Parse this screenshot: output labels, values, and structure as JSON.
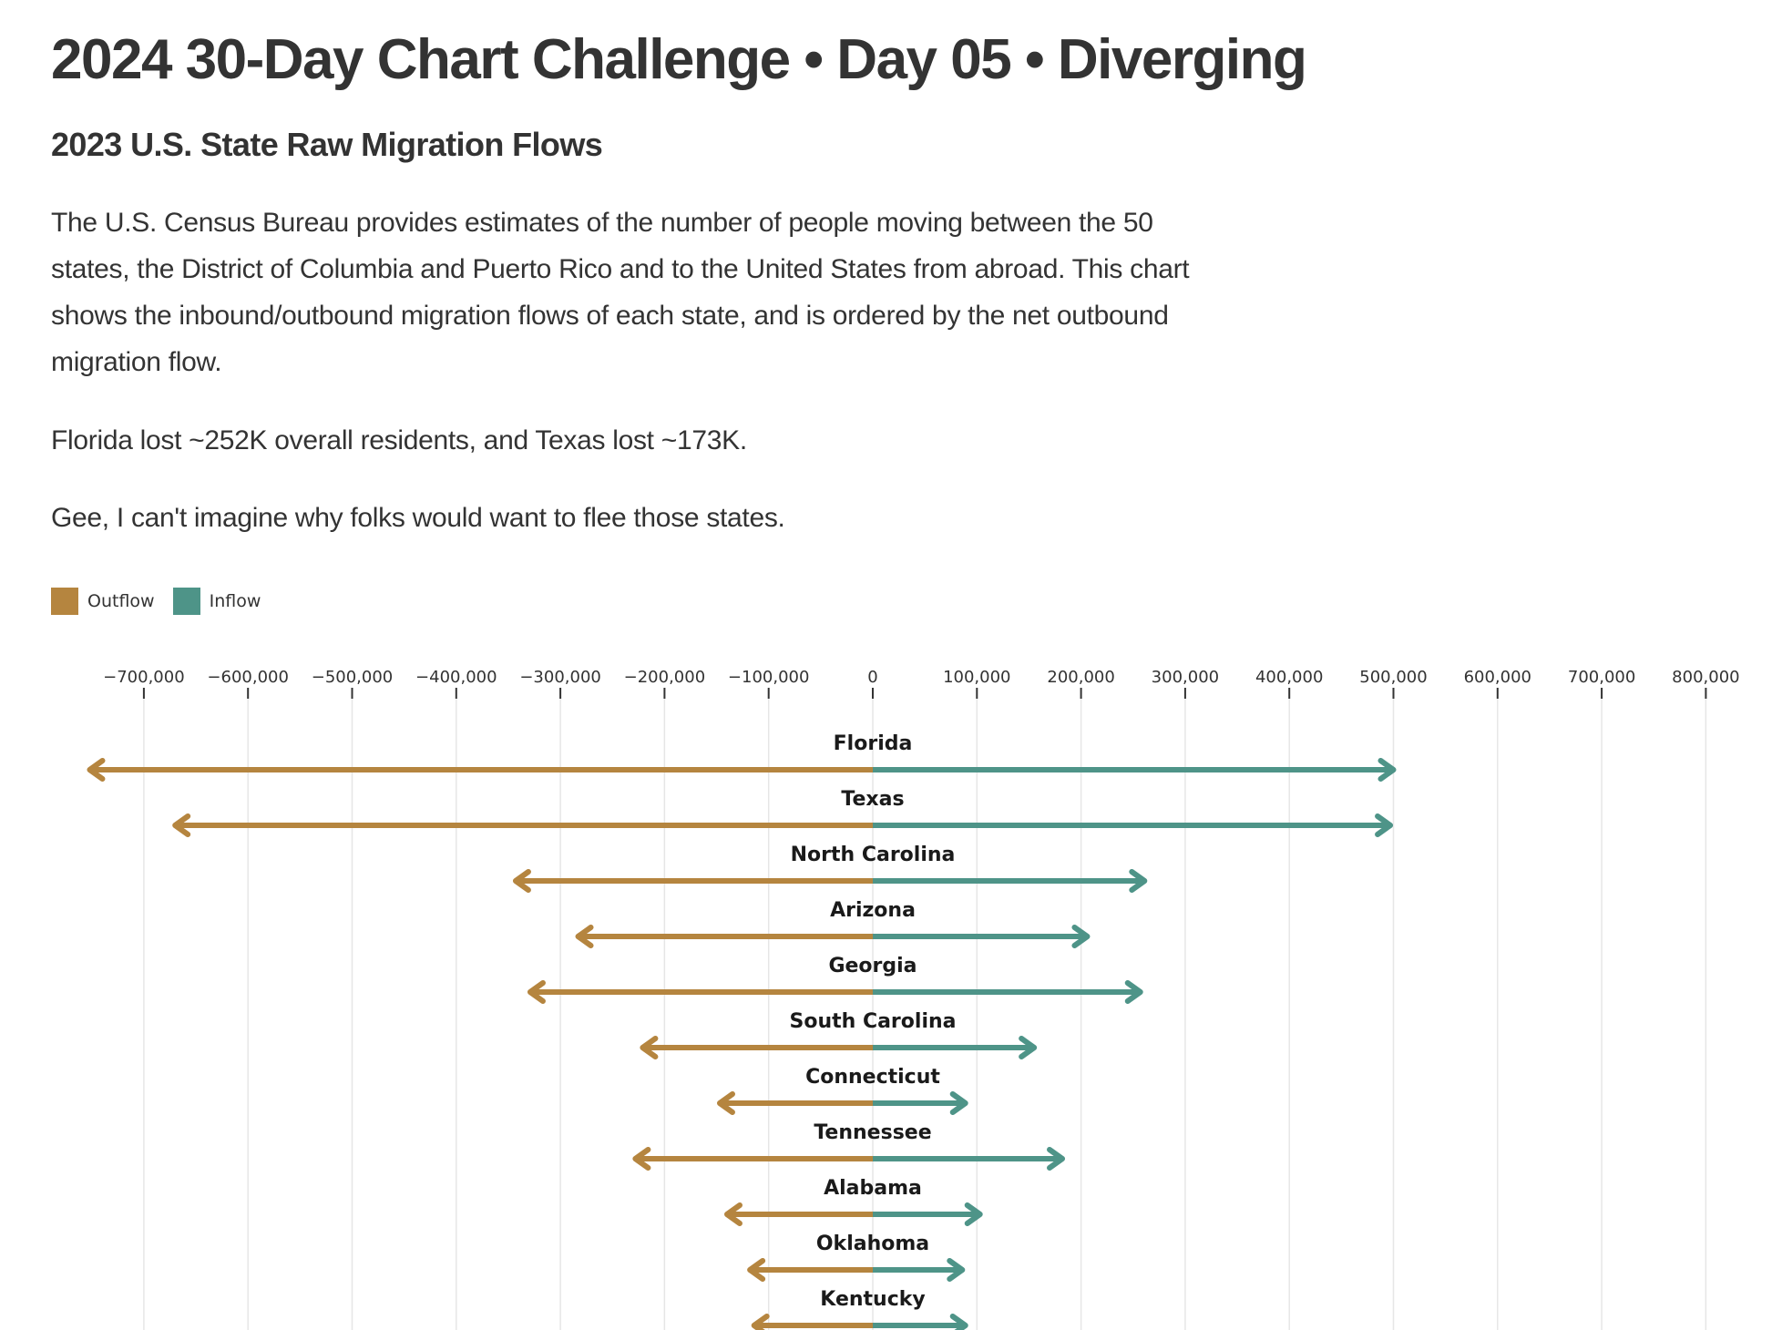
{
  "header": {
    "title": "2024 30-Day Chart Challenge • Day 05 • Diverging",
    "subtitle": "2023 U.S. State Raw Migration Flows"
  },
  "body": {
    "paragraph_1": "The U.S. Census Bureau provides estimates of the number of people moving between the 50 states, the District of Columbia and Puerto Rico and to the United States from abroad. This chart shows the inbound/outbound migration flows of each state, and is ordered by the net outbound migration flow.",
    "paragraph_2": "Florida lost ~252K overall residents, and Texas lost ~173K.",
    "paragraph_3": "Gee, I can't imagine why folks would want to flee those states."
  },
  "legend": {
    "outflow_label": "Outflow",
    "inflow_label": "Inflow"
  },
  "colors": {
    "outflow": "#b5853f",
    "inflow": "#4e9488",
    "gridline": "#e6e6e6",
    "text": "#333333"
  },
  "chart_data": {
    "type": "diverging arrow",
    "title": "2023 U.S. State Raw Migration Flows",
    "xlabel": "",
    "ylabel": "",
    "xlim": [
      -700000,
      800000
    ],
    "x_ticks": [
      -700000,
      -600000,
      -500000,
      -400000,
      -300000,
      -200000,
      -100000,
      0,
      100000,
      200000,
      300000,
      400000,
      500000,
      600000,
      700000,
      800000
    ],
    "x_tick_labels": [
      "−700,000",
      "−600,000",
      "−500,000",
      "−400,000",
      "−300,000",
      "−200,000",
      "−100,000",
      "0",
      "100,000",
      "200,000",
      "300,000",
      "400,000",
      "500,000",
      "600,000",
      "700,000",
      "800,000"
    ],
    "grid": true,
    "legend_position": "top-left",
    "categories": [
      "Florida",
      "Texas",
      "North Carolina",
      "Arizona",
      "Georgia",
      "South Carolina",
      "Connecticut",
      "Tennessee",
      "Alabama",
      "Oklahoma",
      "Kentucky"
    ],
    "series": [
      {
        "name": "Outflow",
        "values": [
          -752000,
          -670000,
          -343000,
          -283000,
          -329000,
          -221000,
          -147000,
          -228000,
          -140000,
          -118000,
          -114000
        ]
      },
      {
        "name": "Inflow",
        "values": [
          500000,
          497000,
          261000,
          206000,
          257000,
          155000,
          89000,
          182000,
          103000,
          86000,
          89000
        ]
      }
    ]
  }
}
